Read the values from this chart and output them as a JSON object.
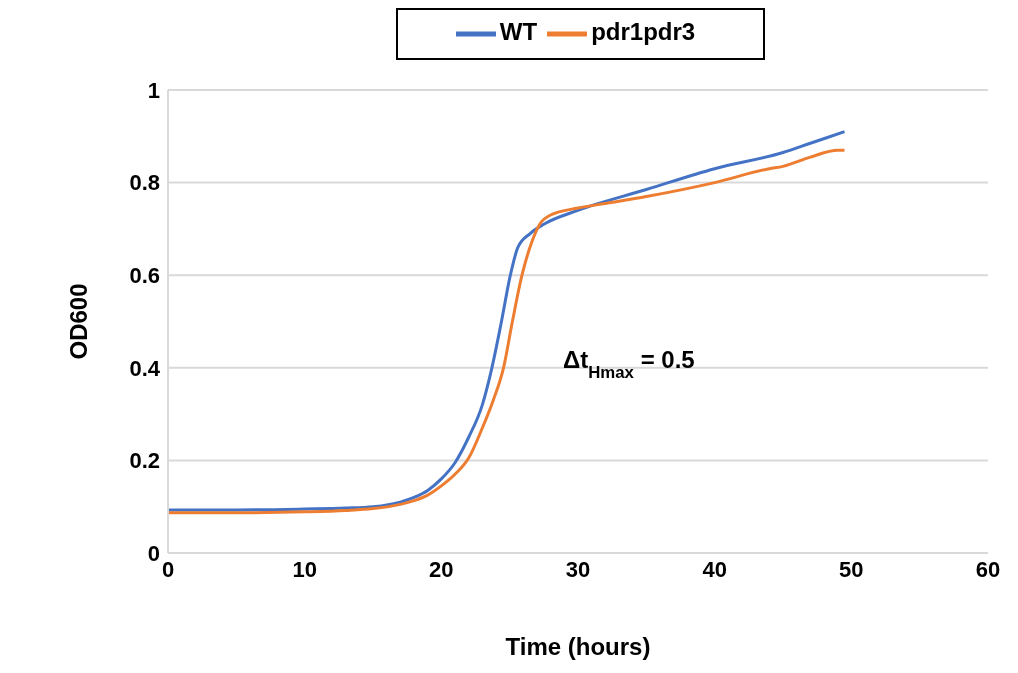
{
  "chart_data": {
    "type": "line",
    "xlabel": "Time (hours)",
    "ylabel": "OD600",
    "xlim": [
      0,
      60
    ],
    "xticks": [
      0,
      10,
      20,
      30,
      40,
      50,
      60
    ],
    "ylim": [
      0,
      1
    ],
    "yticks": [
      0,
      {
        "value": 0.2,
        "label": "0.2"
      },
      {
        "value": 0.4,
        "label": "0.4"
      },
      {
        "value": 0.6,
        "label": "0.6"
      },
      {
        "value": 0.8,
        "label": "0.8"
      },
      1
    ],
    "grid": "y",
    "legend": "top",
    "marker": "none",
    "line_style": "solid",
    "annotations": [
      "Δt$_{Hmax}$ = 0.5"
    ],
    "series": [
      {
        "name": "WT",
        "color": "#4472c4",
        "x": [
          0,
          5,
          10,
          13,
          15,
          17,
          18,
          19,
          20,
          21,
          22,
          23,
          23.7,
          24.4,
          25.05,
          25.6,
          26.5,
          27.5,
          30,
          35,
          40,
          45,
          47,
          49.5
        ],
        "values": [
          0.093,
          0.093,
          0.095,
          0.097,
          0.1,
          0.11,
          0.12,
          0.135,
          0.16,
          0.195,
          0.25,
          0.32,
          0.4,
          0.5,
          0.6,
          0.66,
          0.69,
          0.71,
          0.74,
          0.785,
          0.83,
          0.865,
          0.885,
          0.91
        ]
      },
      {
        "name": "pdr1pdr3",
        "color": "#ed7d31",
        "x": [
          0,
          5,
          10,
          13,
          15,
          17,
          18,
          19,
          20,
          21,
          22,
          23,
          23.8,
          24.55,
          25.2,
          25.9,
          26.6,
          27.2,
          28,
          30,
          32,
          35,
          40,
          44,
          45,
          47,
          49,
          49.5
        ],
        "values": [
          0.087,
          0.087,
          0.089,
          0.092,
          0.096,
          0.105,
          0.113,
          0.125,
          0.145,
          0.17,
          0.205,
          0.27,
          0.33,
          0.4,
          0.5,
          0.6,
          0.67,
          0.71,
          0.73,
          0.745,
          0.755,
          0.77,
          0.8,
          0.83,
          0.835,
          0.855,
          0.87,
          0.87
        ]
      }
    ]
  }
}
